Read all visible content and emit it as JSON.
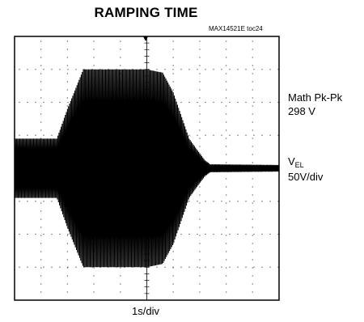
{
  "chart_data": {
    "type": "line",
    "title": "RAMPING TIME",
    "figure_id": "MAX14521E toc24",
    "xlabel": "1s/div",
    "ylabel_main": "V",
    "ylabel_sub": "EL",
    "ylabel_scale": "50V/div",
    "annotation_label": "Math Pk-Pk",
    "annotation_value": "298 V",
    "grid": true,
    "x_divisions": 10,
    "y_divisions": 8,
    "x_unit": "s",
    "x_per_div": 1,
    "y_unit": "V",
    "y_per_div": 50,
    "xlim": [
      0,
      10
    ],
    "ylim": [
      -200,
      200
    ],
    "envelope": {
      "t": [
        0,
        1.0,
        1.6,
        2.0,
        2.3,
        2.6,
        4.0,
        5.0,
        5.6,
        6.0,
        6.3,
        6.6,
        6.9,
        7.2,
        7.4,
        10
      ],
      "vpk": [
        45,
        45,
        45,
        90,
        120,
        150,
        150,
        150,
        145,
        115,
        80,
        45,
        28,
        12,
        6,
        5
      ]
    },
    "peak_to_peak_v": 298
  }
}
